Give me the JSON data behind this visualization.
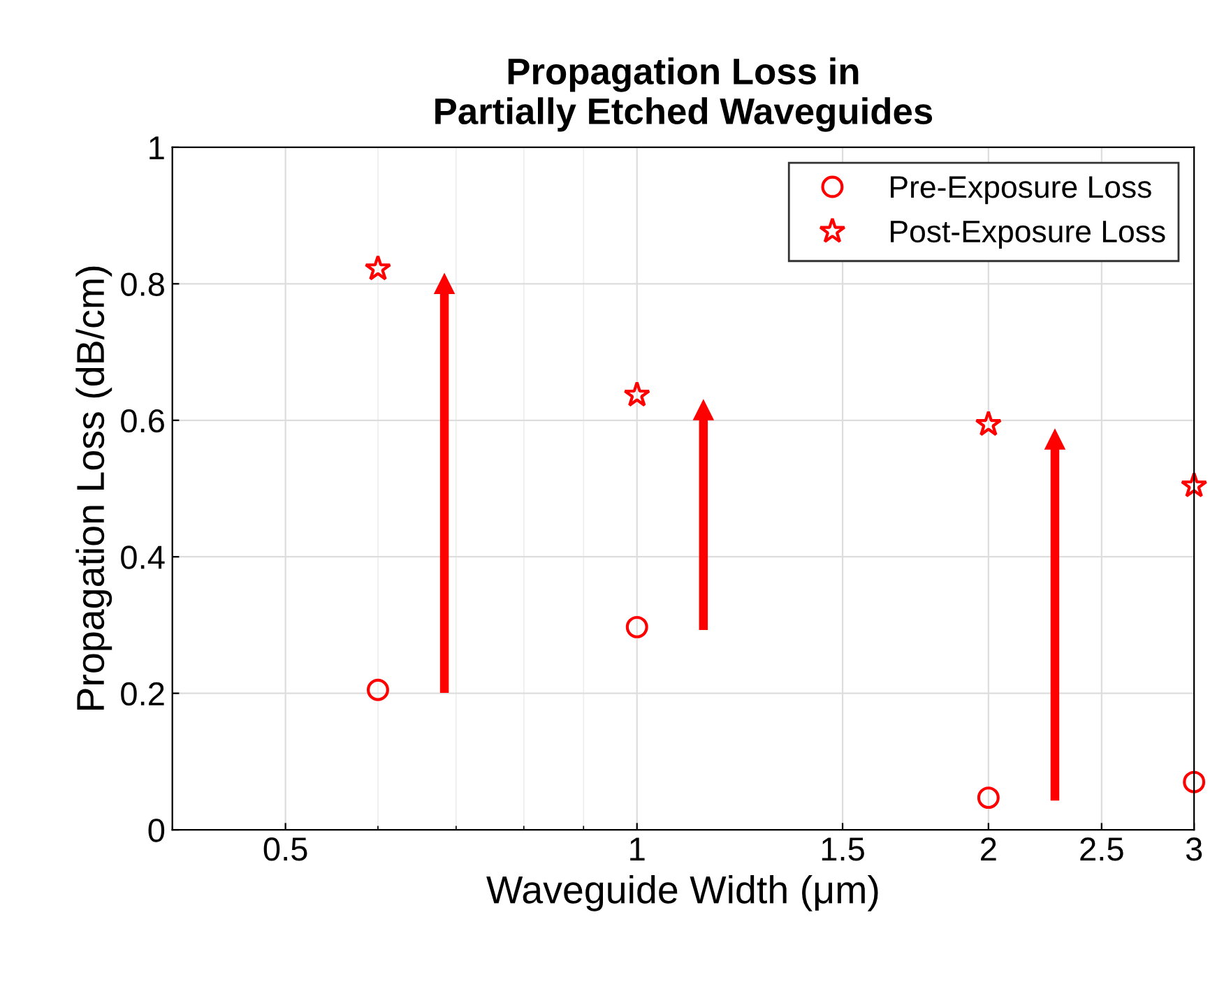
{
  "chart_data": {
    "type": "scatter",
    "title": "Propagation Loss in\nPartially Etched Waveguides",
    "xlabel": "Waveguide Width (μm)",
    "ylabel": "Propagation Loss (dB/cm)",
    "x": [
      0.6,
      1,
      2,
      3
    ],
    "series": [
      {
        "name": "Pre-Exposure Loss",
        "color": "#ff0000",
        "marker": "circle",
        "values": [
          0.205,
          0.297,
          0.047,
          0.07
        ]
      },
      {
        "name": "Post-Exposure Loss",
        "color": "#ff0000",
        "marker": "star",
        "values": [
          0.822,
          0.637,
          0.594,
          0.504
        ]
      }
    ],
    "log": "x",
    "xlim": [
      0.4,
      3
    ],
    "xticks": [
      0.5,
      1,
      1.5,
      2,
      2.5,
      3
    ],
    "ylim": [
      0,
      1
    ],
    "yticks": [
      0,
      0.2,
      0.4,
      0.6,
      0.8,
      1
    ],
    "grid": true,
    "legend": "top right"
  }
}
